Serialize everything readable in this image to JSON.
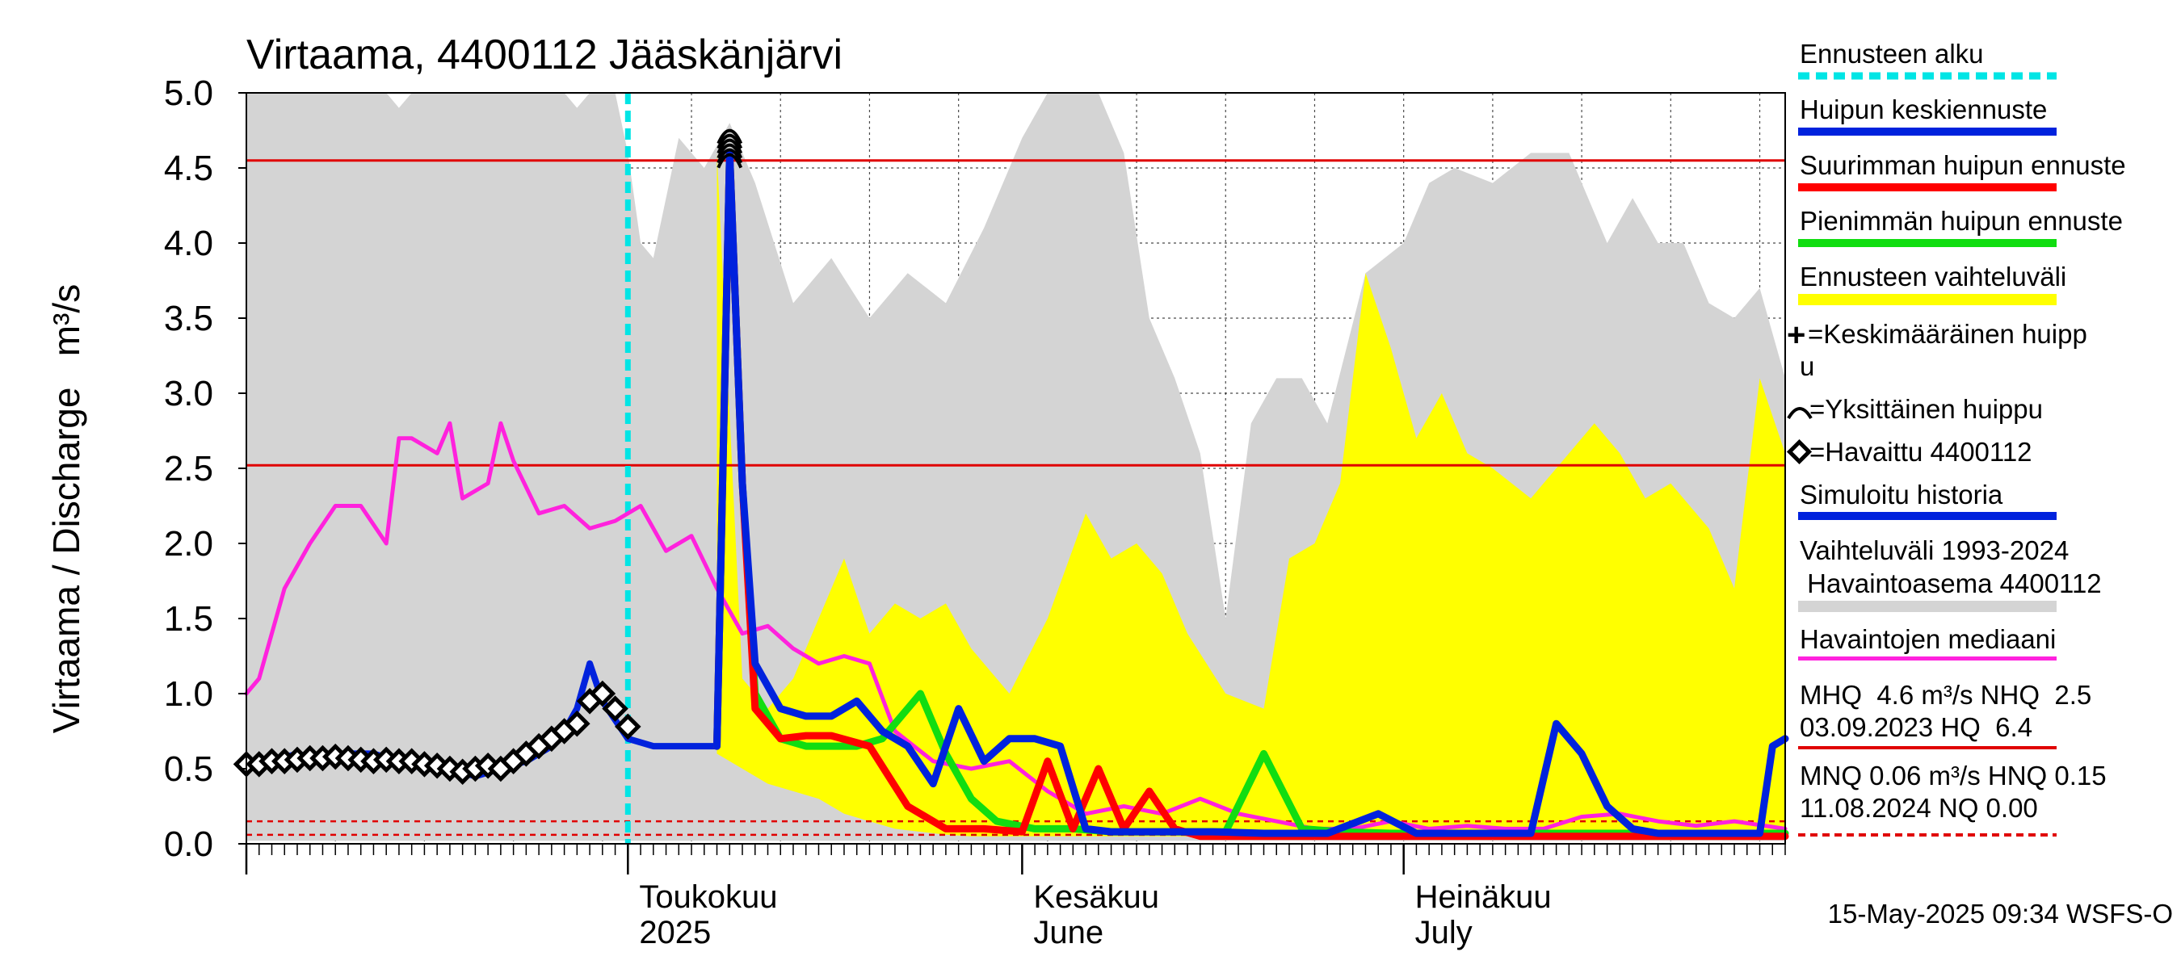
{
  "chart_data": {
    "type": "line",
    "title": "Virtaama, 4400112 Jääskänjärvi",
    "ylabel": "Virtaama / Discharge   m³/s",
    "ylim": [
      0,
      5
    ],
    "yticks": [
      "0.0",
      "0.5",
      "1.0",
      "1.5",
      "2.0",
      "2.5",
      "3.0",
      "3.5",
      "4.0",
      "4.5",
      "5.0"
    ],
    "xlim": [
      "2025-04-01",
      "2025-07-31"
    ],
    "month_labels": [
      {
        "date": "2025-05-01",
        "line1": "Toukokuu",
        "line2": "2025"
      },
      {
        "date": "2025-06-01",
        "line1": "Kesäkuu",
        "line2": "June"
      },
      {
        "date": "2025-07-01",
        "line1": "Heinäkuu",
        "line2": "July"
      }
    ],
    "reference_lines": {
      "MHQ": 4.55,
      "NHQ": 2.52,
      "HNQ": 0.15,
      "MNQ": 0.06
    },
    "forecast_start": "2025-05-01",
    "grid": true,
    "legend_position": "right",
    "colors": {
      "forecast_start": "#00e5e5",
      "mean_peak": "#0022dd",
      "max_peak": "#ff0000",
      "min_peak": "#11dd11",
      "forecast_range": "#ffff00",
      "range_band": "#d4d4d4",
      "median": "#ff22dd",
      "observed": "#000000",
      "simulated": "#0022dd",
      "reference": "#e00000"
    },
    "series": [
      {
        "name": "Vaihteluväli 1993-2024 Havaintoasema 4400112",
        "kind": "band",
        "x": [
          "2025-04-01",
          "2025-04-06",
          "2025-04-12",
          "2025-04-13",
          "2025-04-14",
          "2025-04-20",
          "2025-04-26",
          "2025-04-27",
          "2025-04-28",
          "2025-04-30",
          "2025-05-01",
          "2025-05-02",
          "2025-05-03",
          "2025-05-05",
          "2025-05-07",
          "2025-05-09",
          "2025-05-11",
          "2025-05-14",
          "2025-05-17",
          "2025-05-20",
          "2025-05-23",
          "2025-05-26",
          "2025-05-29",
          "2025-06-01",
          "2025-06-03",
          "2025-06-05",
          "2025-06-07",
          "2025-06-09",
          "2025-06-11",
          "2025-06-13",
          "2025-06-15",
          "2025-06-17",
          "2025-06-19",
          "2025-06-21",
          "2025-06-23",
          "2025-06-25",
          "2025-06-28",
          "2025-07-01",
          "2025-07-03",
          "2025-07-05",
          "2025-07-08",
          "2025-07-11",
          "2025-07-14",
          "2025-07-17",
          "2025-07-19",
          "2025-07-21",
          "2025-07-23",
          "2025-07-25",
          "2025-07-27",
          "2025-07-29",
          "2025-07-31"
        ],
        "upper": [
          5.0,
          5.0,
          5.0,
          4.9,
          5.0,
          5.0,
          5.0,
          4.9,
          5.0,
          5.0,
          4.6,
          4.0,
          3.9,
          4.7,
          4.5,
          4.8,
          4.4,
          3.6,
          3.9,
          3.5,
          3.8,
          3.6,
          4.1,
          4.7,
          5.0,
          5.0,
          5.0,
          4.6,
          3.5,
          3.1,
          2.6,
          1.5,
          2.8,
          3.1,
          3.1,
          2.8,
          3.8,
          4.0,
          4.4,
          4.5,
          4.4,
          4.6,
          4.6,
          4.0,
          4.3,
          4.0,
          4.0,
          3.6,
          3.5,
          3.7,
          3.1
        ],
        "lower": [
          0.02,
          0.02,
          0.02,
          0.02,
          0.02,
          0.02,
          0.02,
          0.02,
          0.02,
          0.02,
          0.02,
          0.02,
          0.02,
          0.02,
          0.02,
          0.02,
          0.02,
          0.02,
          0.02,
          0.02,
          0.02,
          0.02,
          0.02,
          0.02,
          0.02,
          0.02,
          0.02,
          0.02,
          0.02,
          0.02,
          0.02,
          0.02,
          0.02,
          0.02,
          0.02,
          0.02,
          0.02,
          0.02,
          0.02,
          0.02,
          0.02,
          0.02,
          0.02,
          0.02,
          0.02,
          0.02,
          0.02,
          0.02,
          0.02,
          0.02,
          0.02
        ]
      },
      {
        "name": "Ennusteen vaihteluväli",
        "kind": "band",
        "x": [
          "2025-05-08",
          "2025-05-10",
          "2025-05-12",
          "2025-05-14",
          "2025-05-16",
          "2025-05-18",
          "2025-05-20",
          "2025-05-22",
          "2025-05-24",
          "2025-05-26",
          "2025-05-28",
          "2025-05-31",
          "2025-06-03",
          "2025-06-06",
          "2025-06-08",
          "2025-06-10",
          "2025-06-12",
          "2025-06-14",
          "2025-06-17",
          "2025-06-20",
          "2025-06-22",
          "2025-06-24",
          "2025-06-26",
          "2025-06-28",
          "2025-06-30",
          "2025-07-02",
          "2025-07-04",
          "2025-07-06",
          "2025-07-08",
          "2025-07-11",
          "2025-07-14",
          "2025-07-16",
          "2025-07-18",
          "2025-07-20",
          "2025-07-22",
          "2025-07-25",
          "2025-07-27",
          "2025-07-29",
          "2025-07-31"
        ],
        "upper": [
          4.6,
          1.1,
          0.9,
          1.1,
          1.5,
          1.9,
          1.4,
          1.6,
          1.5,
          1.6,
          1.3,
          1.0,
          1.5,
          2.2,
          1.9,
          2.0,
          1.8,
          1.4,
          1.0,
          0.9,
          1.9,
          2.0,
          2.4,
          3.8,
          3.3,
          2.7,
          3.0,
          2.6,
          2.5,
          2.3,
          2.6,
          2.8,
          2.6,
          2.3,
          2.4,
          2.1,
          1.7,
          3.1,
          2.6
        ],
        "lower": [
          0.6,
          0.5,
          0.4,
          0.35,
          0.3,
          0.2,
          0.15,
          0.1,
          0.08,
          0.06,
          0.05,
          0.05,
          0.05,
          0.05,
          0.05,
          0.05,
          0.05,
          0.05,
          0.05,
          0.05,
          0.05,
          0.05,
          0.05,
          0.05,
          0.05,
          0.05,
          0.05,
          0.05,
          0.05,
          0.05,
          0.05,
          0.05,
          0.05,
          0.05,
          0.05,
          0.05,
          0.05,
          0.05,
          0.05
        ]
      },
      {
        "name": "Havaintojen mediaani",
        "x": [
          "2025-04-01",
          "2025-04-02",
          "2025-04-04",
          "2025-04-06",
          "2025-04-08",
          "2025-04-10",
          "2025-04-12",
          "2025-04-13",
          "2025-04-14",
          "2025-04-16",
          "2025-04-17",
          "2025-04-18",
          "2025-04-20",
          "2025-04-21",
          "2025-04-22",
          "2025-04-24",
          "2025-04-26",
          "2025-04-28",
          "2025-04-30",
          "2025-05-02",
          "2025-05-04",
          "2025-05-06",
          "2025-05-08",
          "2025-05-10",
          "2025-05-12",
          "2025-05-14",
          "2025-05-16",
          "2025-05-18",
          "2025-05-20",
          "2025-05-22",
          "2025-05-25",
          "2025-05-28",
          "2025-05-31",
          "2025-06-03",
          "2025-06-06",
          "2025-06-09",
          "2025-06-12",
          "2025-06-15",
          "2025-06-18",
          "2025-06-21",
          "2025-06-24",
          "2025-06-27",
          "2025-06-30",
          "2025-07-03",
          "2025-07-06",
          "2025-07-09",
          "2025-07-12",
          "2025-07-15",
          "2025-07-18",
          "2025-07-21",
          "2025-07-24",
          "2025-07-27",
          "2025-07-31"
        ],
        "values": [
          1.0,
          1.1,
          1.7,
          2.0,
          2.25,
          2.25,
          2.0,
          2.7,
          2.7,
          2.6,
          2.8,
          2.3,
          2.4,
          2.8,
          2.55,
          2.2,
          2.25,
          2.1,
          2.15,
          2.25,
          1.95,
          2.05,
          1.7,
          1.4,
          1.45,
          1.3,
          1.2,
          1.25,
          1.2,
          0.75,
          0.55,
          0.5,
          0.55,
          0.35,
          0.2,
          0.25,
          0.2,
          0.3,
          0.2,
          0.15,
          0.1,
          0.1,
          0.15,
          0.1,
          0.12,
          0.1,
          0.1,
          0.18,
          0.2,
          0.15,
          0.12,
          0.15,
          0.1
        ]
      },
      {
        "name": "Simuloitu historia",
        "x": [
          "2025-04-01",
          "2025-04-03",
          "2025-04-05",
          "2025-04-07",
          "2025-04-09",
          "2025-04-11",
          "2025-04-13",
          "2025-04-15",
          "2025-04-17",
          "2025-04-19",
          "2025-04-21",
          "2025-04-23",
          "2025-04-25",
          "2025-04-26",
          "2025-04-27",
          "2025-04-28",
          "2025-04-29",
          "2025-05-01",
          "2025-05-03",
          "2025-05-05",
          "2025-05-07",
          "2025-05-08"
        ],
        "values": [
          0.55,
          0.55,
          0.6,
          0.55,
          0.6,
          0.6,
          0.55,
          0.5,
          0.5,
          0.45,
          0.5,
          0.55,
          0.65,
          0.75,
          0.9,
          1.2,
          0.95,
          0.7,
          0.65,
          0.65,
          0.65,
          0.65
        ]
      },
      {
        "name": "Havaittu 4400112",
        "kind": "markers",
        "x": [
          "2025-04-01",
          "2025-04-02",
          "2025-04-03",
          "2025-04-04",
          "2025-04-05",
          "2025-04-06",
          "2025-04-07",
          "2025-04-08",
          "2025-04-09",
          "2025-04-10",
          "2025-04-11",
          "2025-04-12",
          "2025-04-13",
          "2025-04-14",
          "2025-04-15",
          "2025-04-16",
          "2025-04-17",
          "2025-04-18",
          "2025-04-19",
          "2025-04-20",
          "2025-04-21",
          "2025-04-22",
          "2025-04-23",
          "2025-04-24",
          "2025-04-25",
          "2025-04-26",
          "2025-04-27",
          "2025-04-28",
          "2025-04-29",
          "2025-04-30",
          "2025-05-01"
        ],
        "values": [
          0.53,
          0.53,
          0.55,
          0.55,
          0.56,
          0.57,
          0.57,
          0.58,
          0.57,
          0.56,
          0.55,
          0.56,
          0.55,
          0.55,
          0.53,
          0.52,
          0.5,
          0.48,
          0.5,
          0.52,
          0.5,
          0.55,
          0.6,
          0.65,
          0.7,
          0.75,
          0.8,
          0.95,
          1.0,
          0.9,
          0.78
        ]
      },
      {
        "name": "Huipun keskiennuste",
        "x": [
          "2025-05-08",
          "2025-05-09",
          "2025-05-10",
          "2025-05-11",
          "2025-05-13",
          "2025-05-15",
          "2025-05-17",
          "2025-05-19",
          "2025-05-21",
          "2025-05-23",
          "2025-05-25",
          "2025-05-27",
          "2025-05-29",
          "2025-05-31",
          "2025-06-02",
          "2025-06-04",
          "2025-06-06",
          "2025-06-08",
          "2025-06-10",
          "2025-06-13",
          "2025-06-16",
          "2025-06-20",
          "2025-06-25",
          "2025-06-29",
          "2025-07-02",
          "2025-07-05",
          "2025-07-08",
          "2025-07-11",
          "2025-07-13",
          "2025-07-15",
          "2025-07-17",
          "2025-07-19",
          "2025-07-21",
          "2025-07-24",
          "2025-07-27",
          "2025-07-29",
          "2025-07-30",
          "2025-07-31"
        ],
        "values": [
          0.65,
          4.6,
          2.4,
          1.2,
          0.9,
          0.85,
          0.85,
          0.95,
          0.75,
          0.65,
          0.4,
          0.9,
          0.55,
          0.7,
          0.7,
          0.65,
          0.1,
          0.08,
          0.08,
          0.08,
          0.08,
          0.07,
          0.07,
          0.2,
          0.07,
          0.07,
          0.07,
          0.07,
          0.8,
          0.6,
          0.25,
          0.1,
          0.07,
          0.07,
          0.07,
          0.07,
          0.65,
          0.7
        ]
      },
      {
        "name": "Suurimman huipun ennuste",
        "x": [
          "2025-05-08",
          "2025-05-09",
          "2025-05-10",
          "2025-05-11",
          "2025-05-13",
          "2025-05-15",
          "2025-05-17",
          "2025-05-20",
          "2025-05-23",
          "2025-05-26",
          "2025-05-29",
          "2025-06-01",
          "2025-06-03",
          "2025-06-05",
          "2025-06-07",
          "2025-06-09",
          "2025-06-11",
          "2025-06-13",
          "2025-06-15",
          "2025-06-17",
          "2025-06-19",
          "2025-06-22",
          "2025-06-25",
          "2025-06-28",
          "2025-07-01",
          "2025-07-05",
          "2025-07-10",
          "2025-07-15",
          "2025-07-20",
          "2025-07-25",
          "2025-07-31"
        ],
        "values": [
          0.65,
          4.6,
          2.4,
          0.9,
          0.7,
          0.72,
          0.72,
          0.65,
          0.25,
          0.1,
          0.1,
          0.08,
          0.55,
          0.1,
          0.5,
          0.1,
          0.35,
          0.1,
          0.05,
          0.05,
          0.05,
          0.05,
          0.05,
          0.05,
          0.05,
          0.05,
          0.05,
          0.05,
          0.05,
          0.05,
          0.05
        ]
      },
      {
        "name": "Pienimmän huipun ennuste",
        "x": [
          "2025-05-08",
          "2025-05-09",
          "2025-05-10",
          "2025-05-11",
          "2025-05-13",
          "2025-05-15",
          "2025-05-17",
          "2025-05-19",
          "2025-05-21",
          "2025-05-24",
          "2025-05-26",
          "2025-05-28",
          "2025-05-30",
          "2025-06-02",
          "2025-06-05",
          "2025-06-08",
          "2025-06-11",
          "2025-06-14",
          "2025-06-17",
          "2025-06-20",
          "2025-06-23",
          "2025-06-26",
          "2025-06-30",
          "2025-07-04",
          "2025-07-10",
          "2025-07-20",
          "2025-07-31"
        ],
        "values": [
          0.65,
          4.6,
          2.4,
          1.0,
          0.7,
          0.65,
          0.65,
          0.65,
          0.7,
          1.0,
          0.6,
          0.3,
          0.15,
          0.1,
          0.1,
          0.08,
          0.08,
          0.08,
          0.08,
          0.6,
          0.1,
          0.08,
          0.07,
          0.07,
          0.07,
          0.07,
          0.07
        ]
      }
    ],
    "legend": {
      "forecast_start": "Ennusteen alku",
      "mean_peak": "Huipun keskiennuste",
      "max_peak": "Suurimman huipun ennuste",
      "min_peak": "Pienimmän huipun ennuste",
      "forecast_range": "Ennusteen vaihteluväli",
      "avg_peak_a": "=Keskimääräinen huipp",
      "avg_peak_b": "u",
      "single_peak": "=Yksittäinen huippu",
      "observed": "=Havaittu 4400112",
      "simulated": "Simuloitu historia",
      "range_a": "Vaihteluväli 1993-2024",
      "range_b": " Havaintoasema 4400112",
      "median": "Havaintojen mediaani",
      "stats1a": "MHQ  4.6 m³/s NHQ  2.5",
      "stats1b": "03.09.2023 HQ  6.4",
      "stats2a": "MNQ 0.06 m³/s HNQ 0.15",
      "stats2b": "11.08.2024 NQ 0.00"
    },
    "footer": "15-May-2025 09:34 WSFS-O"
  }
}
